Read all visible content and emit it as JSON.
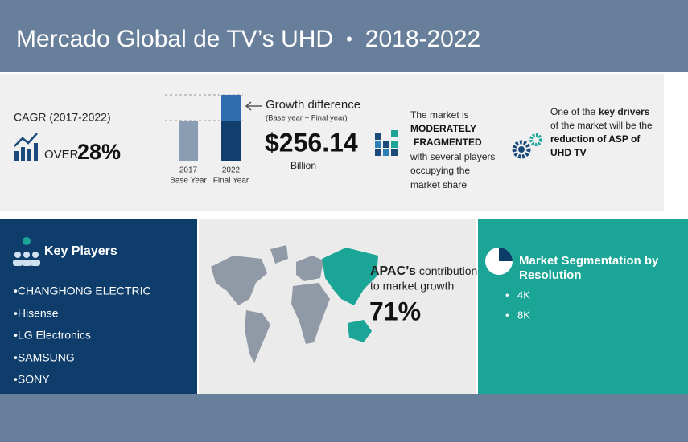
{
  "header": {
    "title": "Mercado Global de TV’s UHD",
    "separator": "•",
    "period": "2018-2022"
  },
  "cagr": {
    "label": "CAGR (2017-2022)",
    "prefix": "OVER",
    "value": "28%"
  },
  "growth": {
    "bars": [
      {
        "year": "2017",
        "label": "Base Year"
      },
      {
        "year": "2022",
        "label": "Final Year"
      }
    ],
    "title": "Growth difference",
    "subtitle": "(Base year ~ Final year)",
    "value": "$256.14",
    "unit": "Billion"
  },
  "fragmentation": {
    "lines": [
      "The market is",
      "MODERATELY",
      "FRAGMENTED",
      "with several players",
      "occupying the",
      "market share"
    ]
  },
  "drivers": {
    "line1": [
      "One of the",
      "key drivers"
    ],
    "line2": "of the market will be the",
    "line3": "reduction of ASP of",
    "line4": "UHD TV"
  },
  "key_players": {
    "title": "Key Players",
    "items": [
      "•CHANGHONG ELECTRIC",
      "•Hisense",
      "•LG Electronics",
      "•SAMSUNG",
      "•SONY"
    ]
  },
  "apac": {
    "line1": [
      "APAC’s",
      "contribution"
    ],
    "line2": "to market growth",
    "value": "71%"
  },
  "segmentation": {
    "title": [
      "Market Segmentation by",
      "Resolution"
    ],
    "items": [
      "•",
      "4K",
      "•",
      "8K"
    ]
  }
}
